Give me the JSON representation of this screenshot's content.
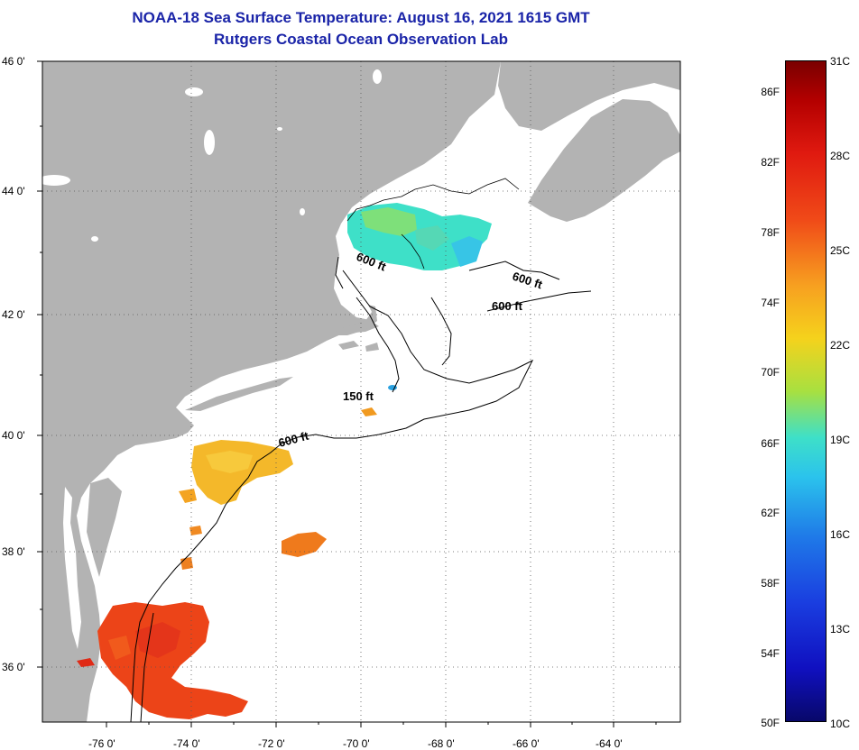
{
  "title": {
    "line1": "NOAA-18 Sea Surface Temperature:  August 16, 2021 1615 GMT",
    "line2": "Rutgers Coastal Ocean Observation Lab"
  },
  "lat_labels": [
    "46 0'",
    "44 0'",
    "42 0'",
    "40 0'",
    "38 0'",
    "36 0'"
  ],
  "lon_labels": [
    "-76 0'",
    "-74 0'",
    "-72 0'",
    "-70 0'",
    "-68 0'",
    "-66 0'",
    "-64 0'"
  ],
  "depth_labels": [
    "600 ft",
    "600 ft",
    "600 ft",
    "150 ft",
    "600 ft"
  ],
  "colorbar": {
    "fahrenheit": [
      "86F",
      "82F",
      "78F",
      "74F",
      "70F",
      "66F",
      "62F",
      "58F",
      "54F",
      "50F"
    ],
    "celsius": [
      "31C",
      "28C",
      "25C",
      "22C",
      "19C",
      "16C",
      "13C",
      "10C"
    ]
  },
  "colors": {
    "land": "#b3b3b3",
    "ocean": "#ffffff",
    "title": "#1a24a8"
  }
}
